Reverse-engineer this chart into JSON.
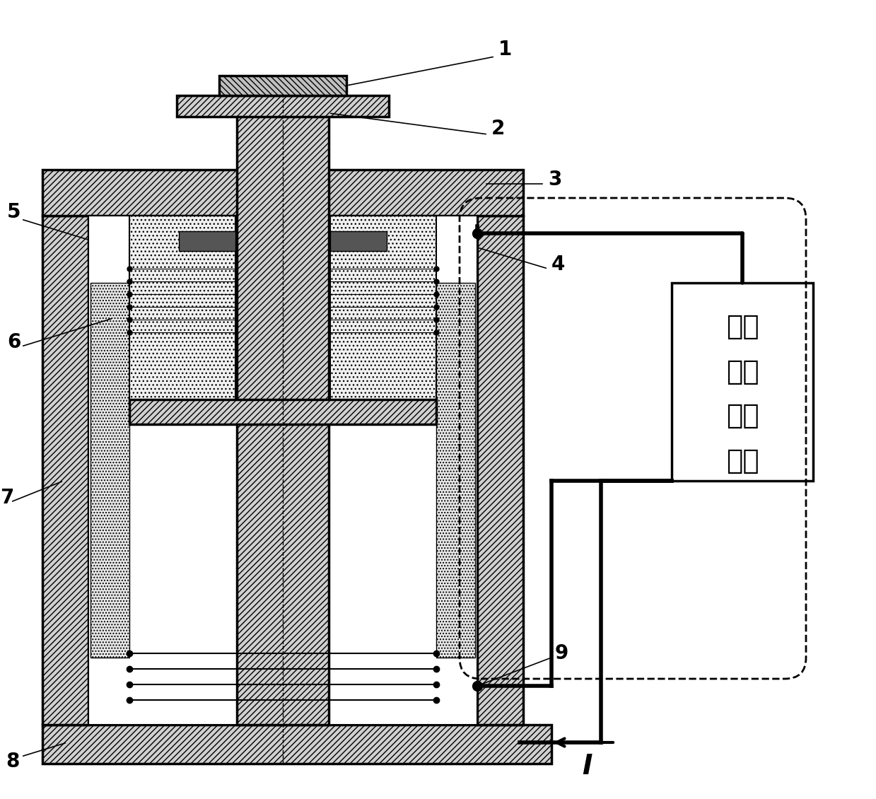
{
  "bg_color": "#ffffff",
  "line_color": "#000000",
  "hatch_45": "////",
  "hatch_cross": "xxxx",
  "hatch_dot": "....",
  "label_1": "1",
  "label_2": "2",
  "label_3": "3",
  "label_4": "4",
  "label_5": "5",
  "label_6": "6",
  "label_7": "7",
  "label_8": "8",
  "label_9": "9",
  "box_text_line1": "电磁",
  "box_text_line2": "增强",
  "box_text_line3": "阻尼",
  "box_text_line4": "电路",
  "arrow_label": "I",
  "figsize": [
    12.39,
    11.3
  ]
}
